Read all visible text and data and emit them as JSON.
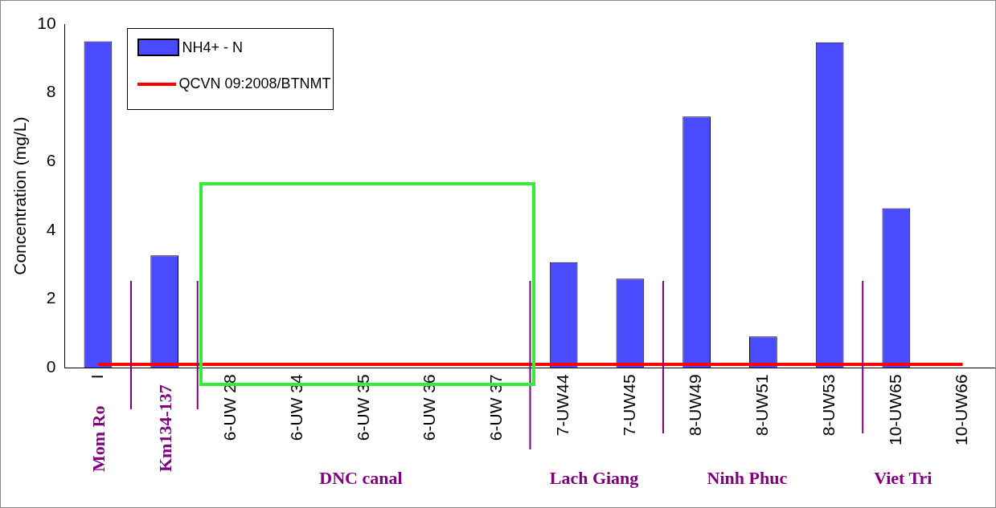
{
  "chart_data": {
    "type": "bar",
    "ylabel": "Concentration (mg/L)",
    "categories": [
      "I",
      null,
      "6-UW 28",
      "6-UW 34",
      "6-UW 35",
      "6-UW 36",
      "6-UW 37",
      "7-UW44",
      "7-UW45",
      "8-UW49",
      "8-UW51",
      "8-UW53",
      "10-UW65",
      "10-UW66"
    ],
    "series": [
      {
        "name": "NH4+ - N",
        "color": "#4a4aff",
        "values": [
          9.5,
          3.27,
          0,
          0,
          0,
          0,
          0,
          3.07,
          2.59,
          7.31,
          0.91,
          9.47,
          4.64,
          0
        ]
      },
      {
        "name": "QCVN 09:2008/BTNMT",
        "type": "line",
        "color": "#ff0000",
        "values": [
          0.1,
          0.1,
          0.1,
          0.1,
          0.1,
          0.1,
          0.1,
          0.1,
          0.1,
          0.1,
          0.1,
          0.1,
          0.1,
          0.1
        ]
      }
    ],
    "ylim": [
      0,
      10
    ],
    "yticks": [
      0,
      2,
      4,
      6,
      8,
      10
    ],
    "grid": false,
    "legend": "top left",
    "marker": "none",
    "annotations": [
      "Mom Ro",
      "Km134-137",
      "DNC canal",
      "Lach Giang",
      "Ninh Phuc",
      "Viet Tri"
    ]
  }
}
